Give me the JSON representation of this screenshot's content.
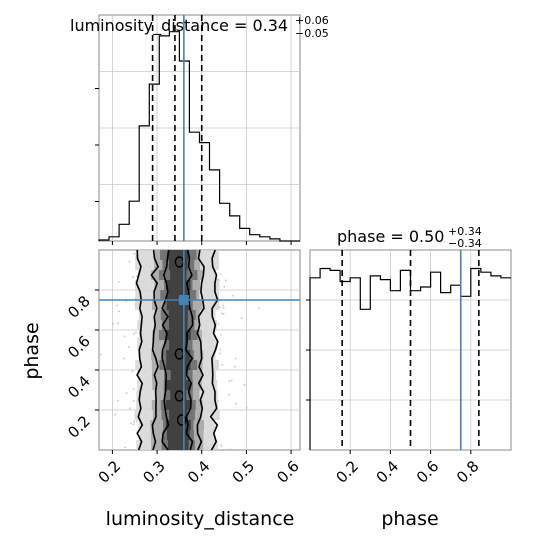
{
  "chart_data": {
    "type": "corner",
    "parameters": [
      "luminosity_distance",
      "phase"
    ],
    "axis_labels": {
      "luminosity_distance": "luminosity_distance",
      "phase": "phase"
    },
    "titles": {
      "luminosity_distance": {
        "name": "luminosity_distance",
        "median": "0.34",
        "plus": "+0.06",
        "minus": "−0.05"
      },
      "phase": {
        "name": "phase",
        "median": "0.50",
        "plus": "+0.34",
        "minus": "−0.34"
      }
    },
    "truth": {
      "luminosity_distance": 0.36,
      "phase": 0.75
    },
    "truth_color": "#4682b4",
    "quantiles": {
      "luminosity_distance": [
        0.29,
        0.34,
        0.4
      ],
      "phase": [
        0.16,
        0.5,
        0.84
      ]
    },
    "luminosity_distance_range": [
      0.17,
      0.62
    ],
    "phase_range": [
      0.0,
      1.0
    ],
    "luminosity_distance_ticks": [
      0.2,
      0.3,
      0.4,
      0.5,
      0.6
    ],
    "luminosity_distance_tick_labels": [
      "0.2",
      "0.3",
      "0.4",
      "0.5",
      "0.6"
    ],
    "phase_ticks": [
      0.2,
      0.4,
      0.6,
      0.8
    ],
    "phase_tick_labels": [
      "0.2",
      "0.4",
      "0.6",
      "0.8"
    ],
    "histogram_luminosity_distance": {
      "bin_edges": [
        0.17,
        0.1925,
        0.215,
        0.2375,
        0.26,
        0.2825,
        0.305,
        0.3275,
        0.35,
        0.3725,
        0.395,
        0.4175,
        0.44,
        0.4625,
        0.485,
        0.5075,
        0.53,
        0.5525,
        0.575,
        0.5975,
        0.62
      ],
      "counts": [
        0.005,
        0.02,
        0.08,
        0.19,
        0.55,
        0.75,
        0.98,
        1.0,
        0.86,
        0.52,
        0.47,
        0.34,
        0.18,
        0.12,
        0.06,
        0.03,
        0.02,
        0.01,
        0.0,
        0.0
      ]
    },
    "histogram_phase": {
      "bin_edges": [
        0.0,
        0.05,
        0.1,
        0.15,
        0.2,
        0.25,
        0.3,
        0.35,
        0.4,
        0.45,
        0.5,
        0.55,
        0.6,
        0.65,
        0.7,
        0.75,
        0.8,
        0.85,
        0.9,
        0.95,
        1.0
      ],
      "counts": [
        0.93,
        0.98,
        0.97,
        0.91,
        0.93,
        0.76,
        0.94,
        0.92,
        0.86,
        0.97,
        0.86,
        0.88,
        0.96,
        0.85,
        0.89,
        0.83,
        0.98,
        0.96,
        0.94,
        0.93
      ]
    },
    "hist_ymax": 1.08,
    "grid": true
  }
}
